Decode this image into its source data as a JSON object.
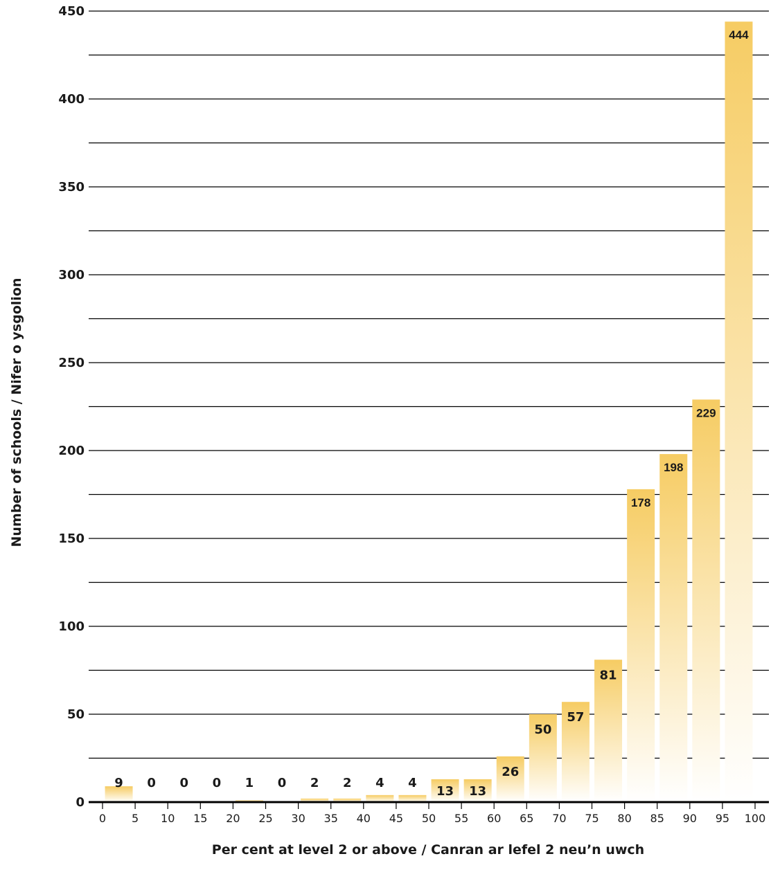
{
  "chart_data": {
    "type": "bar",
    "ylabel": "Number of schools / Nifer o ysgolion",
    "xlabel": "Per cent at level 2 or above / Canran ar lefel 2 neu’n uwch",
    "ylim": [
      0,
      450
    ],
    "y_ticks": [
      "0",
      "50",
      "100",
      "150",
      "200",
      "250",
      "300",
      "350",
      "400",
      "450"
    ],
    "x_ticks": [
      "0",
      "5",
      "10",
      "15",
      "20",
      "25",
      "30",
      "35",
      "40",
      "45",
      "50",
      "55",
      "60",
      "65",
      "70",
      "75",
      "80",
      "85",
      "90",
      "95",
      "100"
    ],
    "bins": [
      "0-5",
      "5-10",
      "10-15",
      "15-20",
      "20-25",
      "25-30",
      "30-35",
      "35-40",
      "40-45",
      "45-50",
      "50-55",
      "55-60",
      "60-65",
      "65-70",
      "70-75",
      "75-80",
      "80-85",
      "85-90",
      "90-95",
      "95-100"
    ],
    "values": [
      9,
      0,
      0,
      0,
      1,
      0,
      2,
      2,
      4,
      4,
      13,
      13,
      26,
      50,
      57,
      81,
      178,
      198,
      229,
      444
    ],
    "labels": [
      "9",
      "0",
      "0",
      "0",
      "1",
      "0",
      "2",
      "2",
      "4",
      "4",
      "13",
      "13",
      "26",
      "50",
      "57",
      "81",
      "178",
      "198",
      "229",
      "444"
    ],
    "grid": true,
    "bar_color_top": "#f6cc63",
    "bar_color_bottom": "#ffffff"
  }
}
